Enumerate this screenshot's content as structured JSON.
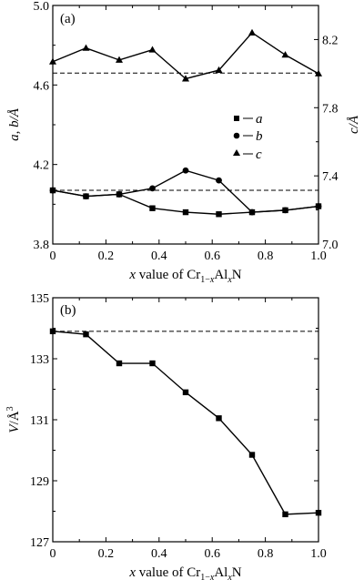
{
  "chart_data": [
    {
      "panel": "(a)",
      "type": "line",
      "x": [
        0,
        0.125,
        0.25,
        0.375,
        0.5,
        0.625,
        0.75,
        0.875,
        1.0
      ],
      "xlabel": "x value of Cr1−xAlxN",
      "xlabel_parts": {
        "var": "x",
        "mid": " value of Cr",
        "sub1": "1−",
        "subx": "x",
        "al": "Al",
        "sub2": "x",
        "end": "N"
      },
      "xticks": [
        "0",
        "0.2",
        "0.4",
        "0.6",
        "0.8",
        "1.0"
      ],
      "xlim": [
        0,
        1.0
      ],
      "ylabel": "a, b/Å",
      "ylim": [
        3.8,
        5.0
      ],
      "yticks": [
        "3.8",
        "4.2",
        "4.6",
        "5.0"
      ],
      "y2label": "c/Å",
      "y2lim": [
        7.0,
        8.4
      ],
      "y2ticks": [
        "7.0",
        "7.4",
        "7.8",
        "8.2"
      ],
      "series": [
        {
          "name": "a",
          "marker": "square",
          "axis": "left",
          "values": [
            4.07,
            4.04,
            4.05,
            3.98,
            3.96,
            3.95,
            3.96,
            3.97,
            3.99
          ]
        },
        {
          "name": "b",
          "marker": "circle",
          "axis": "left",
          "values": [
            4.07,
            4.04,
            4.05,
            4.08,
            4.17,
            4.12,
            3.96,
            3.97,
            3.99
          ]
        },
        {
          "name": "c",
          "marker": "triangle",
          "axis": "right",
          "values": [
            8.07,
            8.15,
            8.08,
            8.14,
            7.97,
            8.02,
            8.24,
            8.11,
            8.0
          ]
        }
      ],
      "reference_lines": [
        {
          "axis": "left",
          "value": 4.66,
          "style": "dashed"
        },
        {
          "axis": "left",
          "value": 4.07,
          "style": "dashed"
        }
      ],
      "legend_position": "right-middle"
    },
    {
      "panel": "(b)",
      "type": "line",
      "x": [
        0,
        0.125,
        0.25,
        0.375,
        0.5,
        0.625,
        0.75,
        0.875,
        1.0
      ],
      "xlabel": "x value of Cr1−xAlxN",
      "xlabel_parts": {
        "var": "x",
        "mid": " value of Cr",
        "sub1": "1−",
        "subx": "x",
        "al": "Al",
        "sub2": "x",
        "end": "N"
      },
      "xticks": [
        "0",
        "0.2",
        "0.4",
        "0.6",
        "0.8",
        "1.0"
      ],
      "xlim": [
        0,
        1.0
      ],
      "ylabel": "V/Å3",
      "ylabel_parts": {
        "v": "V",
        "unit": "/Å",
        "sup": "3"
      },
      "ylim": [
        127,
        135
      ],
      "yticks": [
        "127",
        "129",
        "131",
        "133",
        "135"
      ],
      "series": [
        {
          "name": "V",
          "marker": "square",
          "values": [
            133.9,
            133.8,
            132.85,
            132.85,
            131.9,
            131.05,
            129.85,
            127.9,
            127.95
          ]
        }
      ],
      "reference_lines": [
        {
          "value": 133.9,
          "style": "dashed"
        }
      ]
    }
  ]
}
